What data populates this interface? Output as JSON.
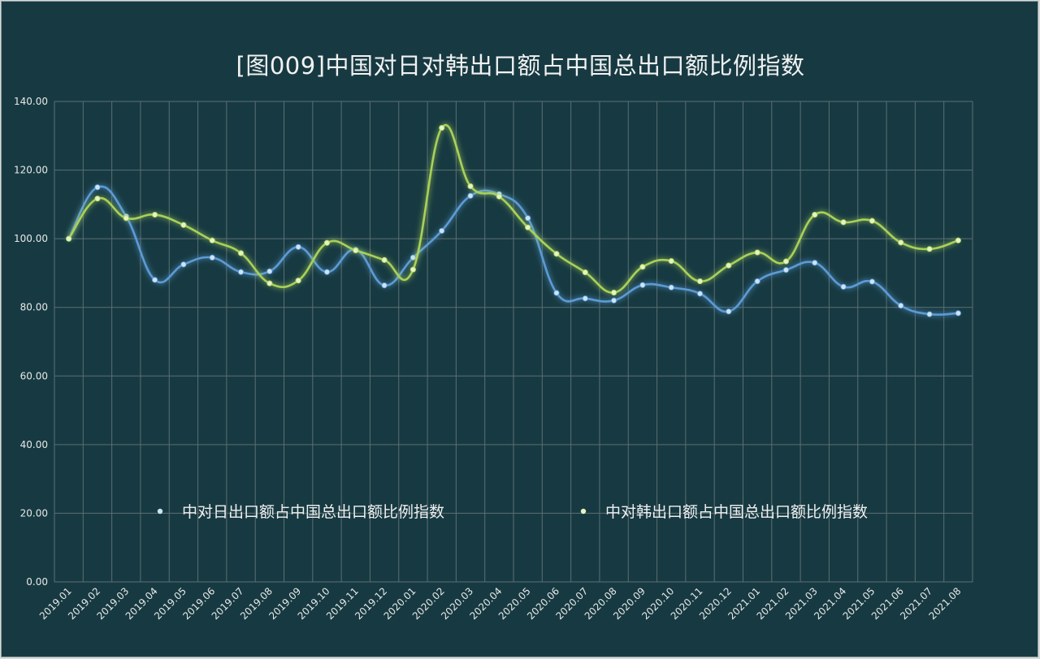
{
  "chart_data": {
    "type": "line",
    "title": "[图009]中国对日对韩出口额占中国总出口额比例指数",
    "categories": [
      "2019.01",
      "2019.02",
      "2019.03",
      "2019.04",
      "2019.05",
      "2019.06",
      "2019.07",
      "2019.08",
      "2019.09",
      "2019.10",
      "2019.11",
      "2019.12",
      "2020.01",
      "2020.02",
      "2020.03",
      "2020.04",
      "2020.05",
      "2020.06",
      "2020.07",
      "2020.08",
      "2020.09",
      "2020.10",
      "2020.11",
      "2020.12",
      "2021.01",
      "2021.02",
      "2021.03",
      "2021.04",
      "2021.05",
      "2021.06",
      "2021.07",
      "2021.08"
    ],
    "series": [
      {
        "name": "中对日出口额占中国总出口额比例指数",
        "color": "#5b9bd5",
        "values": [
          100.0,
          115.0,
          106.5,
          88.0,
          92.5,
          94.5,
          90.3,
          90.5,
          97.6,
          90.3,
          96.8,
          86.4,
          94.5,
          102.3,
          112.5,
          113.0,
          106.0,
          84.2,
          82.6,
          82.0,
          86.5,
          85.8,
          84.0,
          78.8,
          87.6,
          90.9,
          93.0,
          86.0,
          87.5,
          80.5,
          78.0,
          78.3
        ]
      },
      {
        "name": "中对韩出口额占中国总出口额比例指数",
        "color": "#a9d158",
        "values": [
          100.0,
          111.7,
          106.0,
          107.0,
          104.0,
          99.5,
          95.8,
          87.0,
          87.8,
          98.8,
          96.6,
          93.8,
          91.0,
          132.3,
          115.3,
          112.3,
          103.3,
          95.6,
          90.2,
          84.3,
          91.8,
          93.5,
          87.6,
          92.2,
          96.0,
          93.4,
          107.0,
          104.8,
          105.2,
          98.9,
          97.0,
          99.5
        ]
      }
    ],
    "y_ticks": [
      "0.00",
      "20.00",
      "40.00",
      "60.00",
      "80.00",
      "100.00",
      "120.00",
      "140.00"
    ],
    "ylim": [
      0,
      140
    ],
    "grid": true,
    "legend_position": "bottom-inside"
  }
}
